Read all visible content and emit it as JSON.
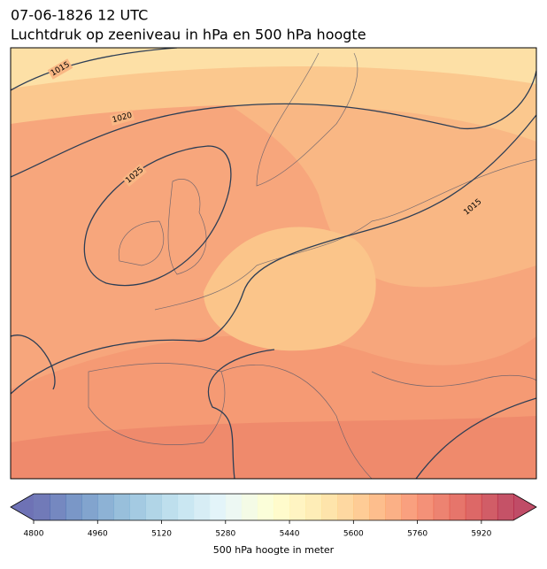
{
  "header": {
    "title": "07-06-1826 12 UTC",
    "subtitle": "Luchtdruk op zeeniveau in hPa en 500 hPa hoogte"
  },
  "isobars": [
    {
      "label": "1015"
    },
    {
      "label": "1020"
    },
    {
      "label": "1025"
    },
    {
      "label": "1015"
    }
  ],
  "colorbar": {
    "lim": [
      4800,
      6000
    ],
    "step": 40,
    "ticks": [
      4800,
      4960,
      5120,
      5280,
      5440,
      5600,
      5760,
      5920
    ],
    "label": "500 hPa hoogte in meter",
    "extend": "both",
    "colormap": [
      "#313695",
      "#4575b4",
      "#74add1",
      "#abd9e9",
      "#e0f3f8",
      "#ffffbf",
      "#fee090",
      "#fdae61",
      "#f46d43",
      "#d73027",
      "#a50026"
    ],
    "alpha": 0.7
  }
}
